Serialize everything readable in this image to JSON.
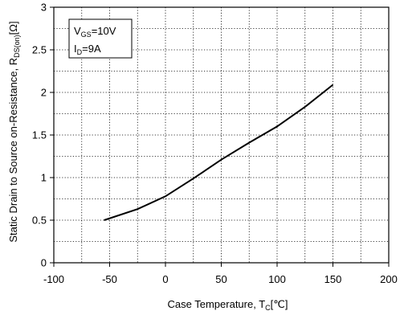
{
  "chart_data": {
    "type": "line",
    "xlabel": {
      "main": "Case Temperature, T",
      "sub": "C",
      "unit": "[℃]"
    },
    "ylabel": {
      "main": "Static Drain to Source on-Resistance, R",
      "sub": "DS(on)",
      "unit": "[Ω]"
    },
    "xlim": [
      -100,
      200
    ],
    "ylim": [
      0,
      3
    ],
    "x_ticks": [
      -100,
      -50,
      0,
      50,
      100,
      150,
      200
    ],
    "y_ticks": [
      0,
      0.5,
      1,
      1.5,
      2,
      2.5,
      3
    ],
    "x_tick_labels": [
      "-100",
      "-50",
      "0",
      "50",
      "100",
      "150",
      "200"
    ],
    "y_tick_labels": [
      "0",
      "0.5",
      "1",
      "1.5",
      "2",
      "2.5",
      "3"
    ],
    "grid": "dotted",
    "annotation": {
      "line1": {
        "main": "V",
        "sub": "GS",
        "rest": "=10V"
      },
      "line2": {
        "main": "I",
        "sub": "D",
        "rest": "=9A"
      },
      "placement": "top-left"
    },
    "series": [
      {
        "x": [
          -55,
          -25,
          0,
          25,
          50,
          75,
          100,
          125,
          150
        ],
        "y": [
          0.5,
          0.63,
          0.78,
          0.99,
          1.21,
          1.41,
          1.6,
          1.83,
          2.09
        ]
      }
    ]
  }
}
